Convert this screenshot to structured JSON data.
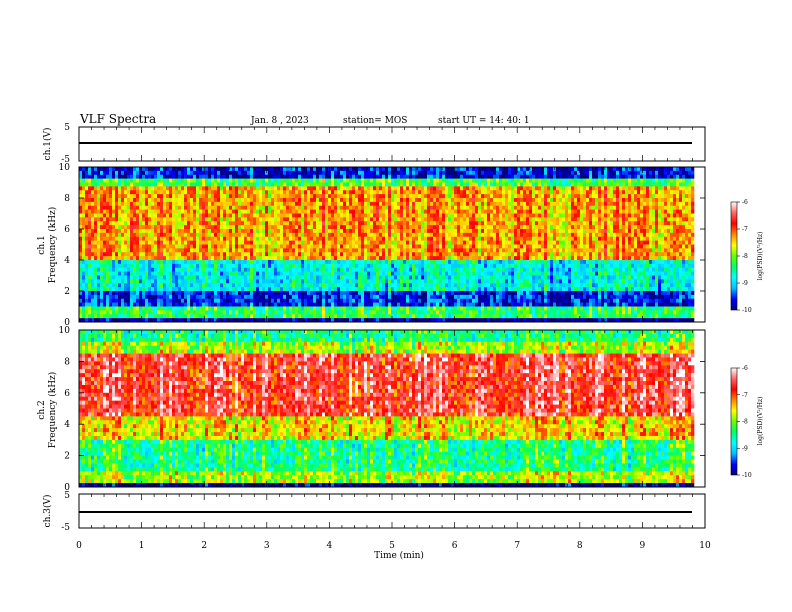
{
  "header": {
    "title": "VLF Spectra",
    "date": "Jan. 8 , 2023",
    "station": "station= MOS",
    "start": "start UT =  14: 40: 1"
  },
  "chart_data": [
    {
      "type": "line",
      "name": "ch1-waveform",
      "ylabel": "ch.1(V)",
      "ylim": [
        -5,
        5
      ],
      "yticks": [
        "5",
        "-5"
      ],
      "x": [
        0,
        9.8
      ],
      "values": [
        0,
        0
      ]
    },
    {
      "type": "heatmap",
      "name": "ch1-spectrogram",
      "ylabel": "ch.1\nFrequency (kHz)",
      "ylim": [
        0,
        10
      ],
      "yticks": [
        "0",
        "2",
        "4",
        "6",
        "8",
        "10"
      ],
      "xlim": [
        0,
        9.8
      ],
      "bands_khz": [
        {
          "from": 0,
          "to": 0.3,
          "log_psd": -10
        },
        {
          "from": 0.3,
          "to": 1.0,
          "log_psd": -8.3
        },
        {
          "from": 1.0,
          "to": 2.0,
          "log_psd": -9.6
        },
        {
          "from": 2.0,
          "to": 4.0,
          "log_psd": -8.8
        },
        {
          "from": 4.0,
          "to": 8.7,
          "log_psd": -7.3
        },
        {
          "from": 8.7,
          "to": 9.2,
          "log_psd": -8.2
        },
        {
          "from": 9.2,
          "to": 10,
          "log_psd": -9.7
        }
      ]
    },
    {
      "type": "heatmap",
      "name": "ch2-spectrogram",
      "ylabel": "ch.2\nFrequency (kHz)",
      "ylim": [
        0,
        10
      ],
      "yticks": [
        "0",
        "2",
        "4",
        "6",
        "8",
        "10"
      ],
      "xlim": [
        0,
        9.8
      ],
      "bands_khz": [
        {
          "from": 0,
          "to": 0.3,
          "log_psd": -10
        },
        {
          "from": 0.3,
          "to": 1.0,
          "log_psd": -7.8
        },
        {
          "from": 1.0,
          "to": 3.0,
          "log_psd": -8.4
        },
        {
          "from": 3.0,
          "to": 4.5,
          "log_psd": -7.5
        },
        {
          "from": 4.5,
          "to": 8.5,
          "log_psd": -6.6
        },
        {
          "from": 8.5,
          "to": 9.3,
          "log_psd": -7.8
        },
        {
          "from": 9.3,
          "to": 10,
          "log_psd": -8.4
        }
      ]
    },
    {
      "type": "line",
      "name": "ch3-waveform",
      "ylabel": "ch.3(V)",
      "ylim": [
        -5,
        5
      ],
      "yticks": [
        "5",
        "-5"
      ],
      "x": [
        0,
        9.8
      ],
      "values": [
        0,
        0
      ]
    }
  ],
  "x_axis": {
    "label": "Time (min)",
    "range": [
      0,
      10
    ],
    "ticks": [
      "0",
      "1",
      "2",
      "3",
      "4",
      "5",
      "6",
      "7",
      "8",
      "9",
      "10"
    ]
  },
  "colorbar": {
    "label": "log(PSD)(V²/Hz)",
    "range": [
      -10,
      -6
    ],
    "ticks": [
      "-6",
      "-7",
      "-8",
      "-9",
      "-10"
    ],
    "colors": [
      "#000080",
      "#0000ff",
      "#00bfff",
      "#00ffff",
      "#00ff66",
      "#66ff00",
      "#ffff00",
      "#ff8800",
      "#ff0000",
      "#ff6666",
      "#ffffff"
    ]
  }
}
